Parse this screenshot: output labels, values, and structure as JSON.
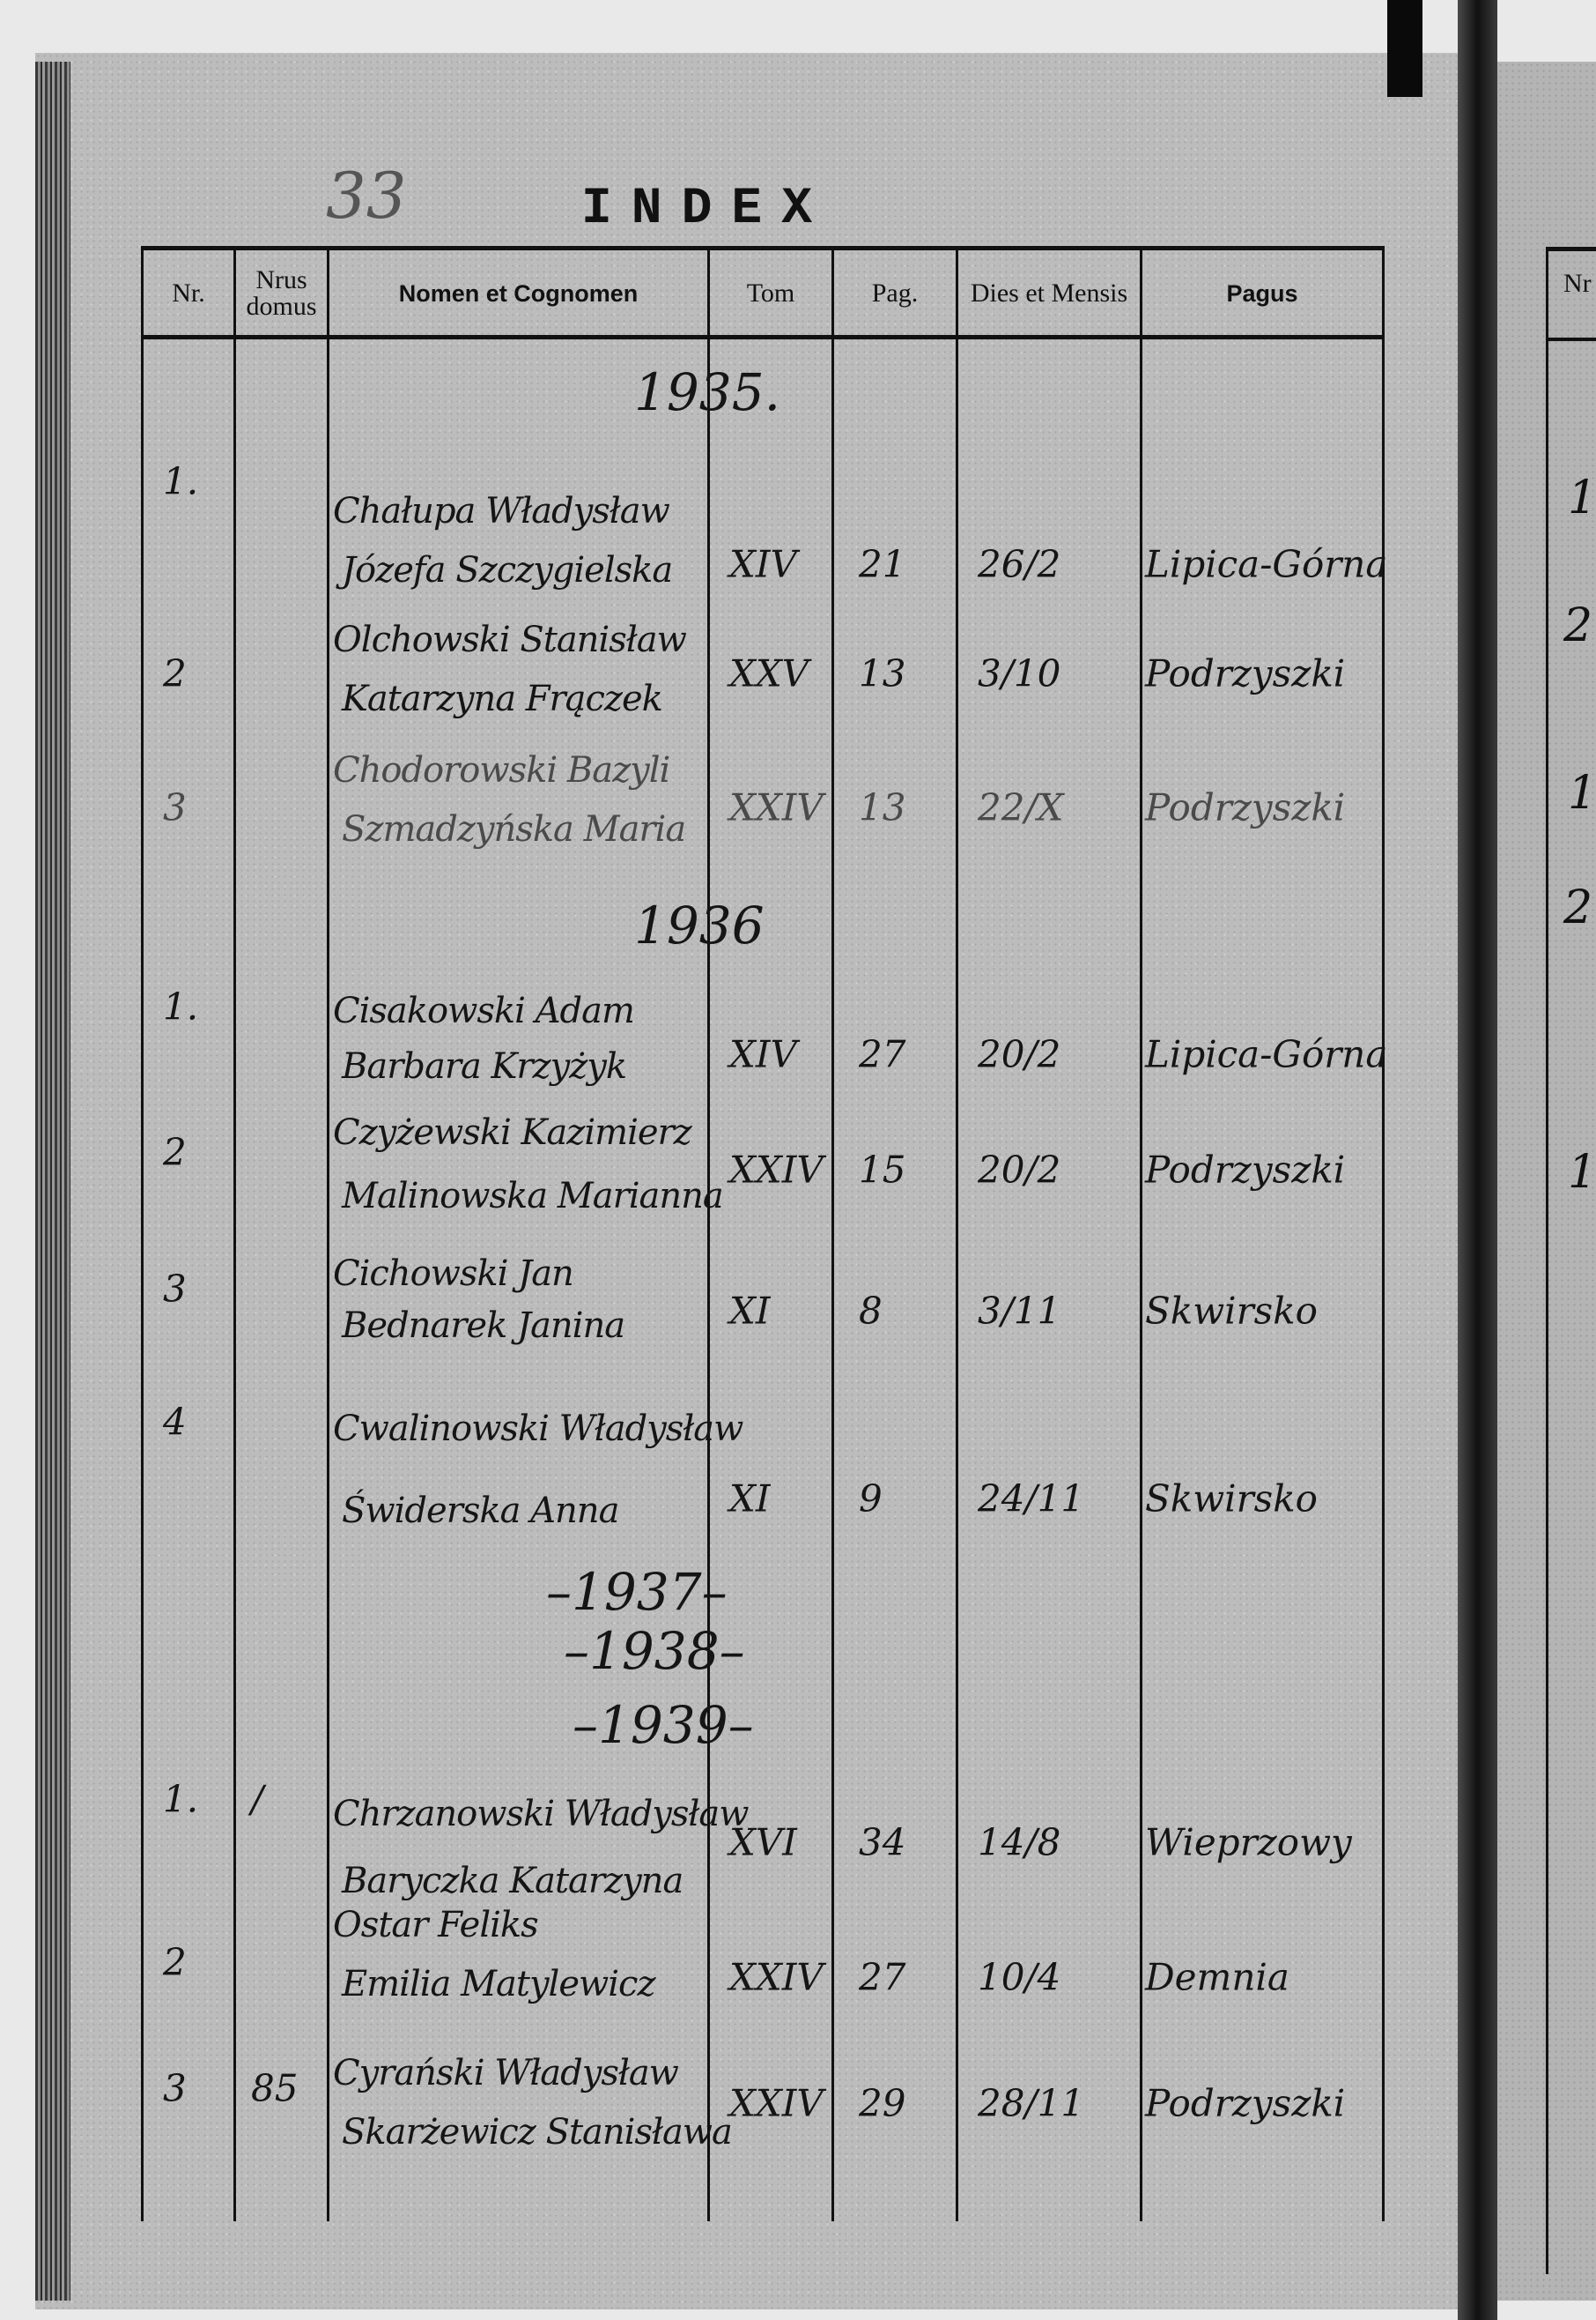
{
  "page_number": "33",
  "title": "INDEX",
  "columns": {
    "nr": "Nr.",
    "nrus_domus": "Nrus domus",
    "nomen": "Nomen et Cognomen",
    "tom": "Tom",
    "pag": "Pag.",
    "dies": "Dies et Mensis",
    "pagus": "Pagus"
  },
  "years": [
    {
      "year": "1935.",
      "entries": [
        {
          "nr": "1.",
          "nrus": "",
          "name1": "Chałupa Władysław",
          "name2": "Józefa Szczygielska",
          "tom": "XIV",
          "pag": "21",
          "dies": "26/2",
          "pagus": "Lipica-Górna"
        },
        {
          "nr": "2",
          "nrus": "",
          "name1": "Olchowski Stanisław",
          "name2": "Katarzyna Frączek",
          "tom": "XXV",
          "pag": "13",
          "dies": "3/10",
          "pagus": "Podrzyszki"
        },
        {
          "nr": "3",
          "nrus": "",
          "name1": "Chodorowski Bazyli",
          "name2": "Szmadzyńska Maria",
          "tom": "XXIV",
          "pag": "13",
          "dies": "22/X",
          "pagus": "Podrzyszki"
        }
      ]
    },
    {
      "year": "1936",
      "entries": [
        {
          "nr": "1.",
          "nrus": "",
          "name1": "Cisakowski Adam",
          "name2": "Barbara Krzyżyk",
          "tom": "XIV",
          "pag": "27",
          "dies": "20/2",
          "pagus": "Lipica-Górna"
        },
        {
          "nr": "2",
          "nrus": "",
          "name1": "Czyżewski Kazimierz",
          "name2": "Malinowska Marianna",
          "tom": "XXIV",
          "pag": "15",
          "dies": "20/2",
          "pagus": "Podrzyszki"
        },
        {
          "nr": "3",
          "nrus": "",
          "name1": "Cichowski Jan",
          "name2": "Bednarek Janina",
          "tom": "XI",
          "pag": "8",
          "dies": "3/11",
          "pagus": "Skwirsko"
        },
        {
          "nr": "4",
          "nrus": "",
          "name1": "Cwalinowski Władysław",
          "name2": "Świderska Anna",
          "tom": "XI",
          "pag": "9",
          "dies": "24/11",
          "pagus": "Skwirsko"
        }
      ]
    },
    {
      "year": "–1937–",
      "entries": []
    },
    {
      "year": "–1938–",
      "entries": []
    },
    {
      "year": "–1939–",
      "entries": [
        {
          "nr": "1.",
          "nrus": "/",
          "name1": "Chrzanowski Władysław",
          "name2": "Baryczka Katarzyna",
          "tom": "XVI",
          "pag": "34",
          "dies": "14/8",
          "pagus": "Wieprzowy"
        },
        {
          "nr": "2",
          "nrus": "",
          "name1": "Ostar Feliks",
          "name2": "Emilia Matylewicz",
          "tom": "XXIV",
          "pag": "27",
          "dies": "10/4",
          "pagus": "Demnia"
        },
        {
          "nr": "3",
          "nrus": "85",
          "name1": "Cyrański Władysław",
          "name2": "Skarżewicz Stanisława",
          "tom": "XXIV",
          "pag": "29",
          "dies": "28/11",
          "pagus": "Podrzyszki"
        }
      ]
    }
  ],
  "next_page": {
    "header": "Nr",
    "numbers": [
      "1",
      "2",
      "1",
      "2",
      "1"
    ]
  }
}
